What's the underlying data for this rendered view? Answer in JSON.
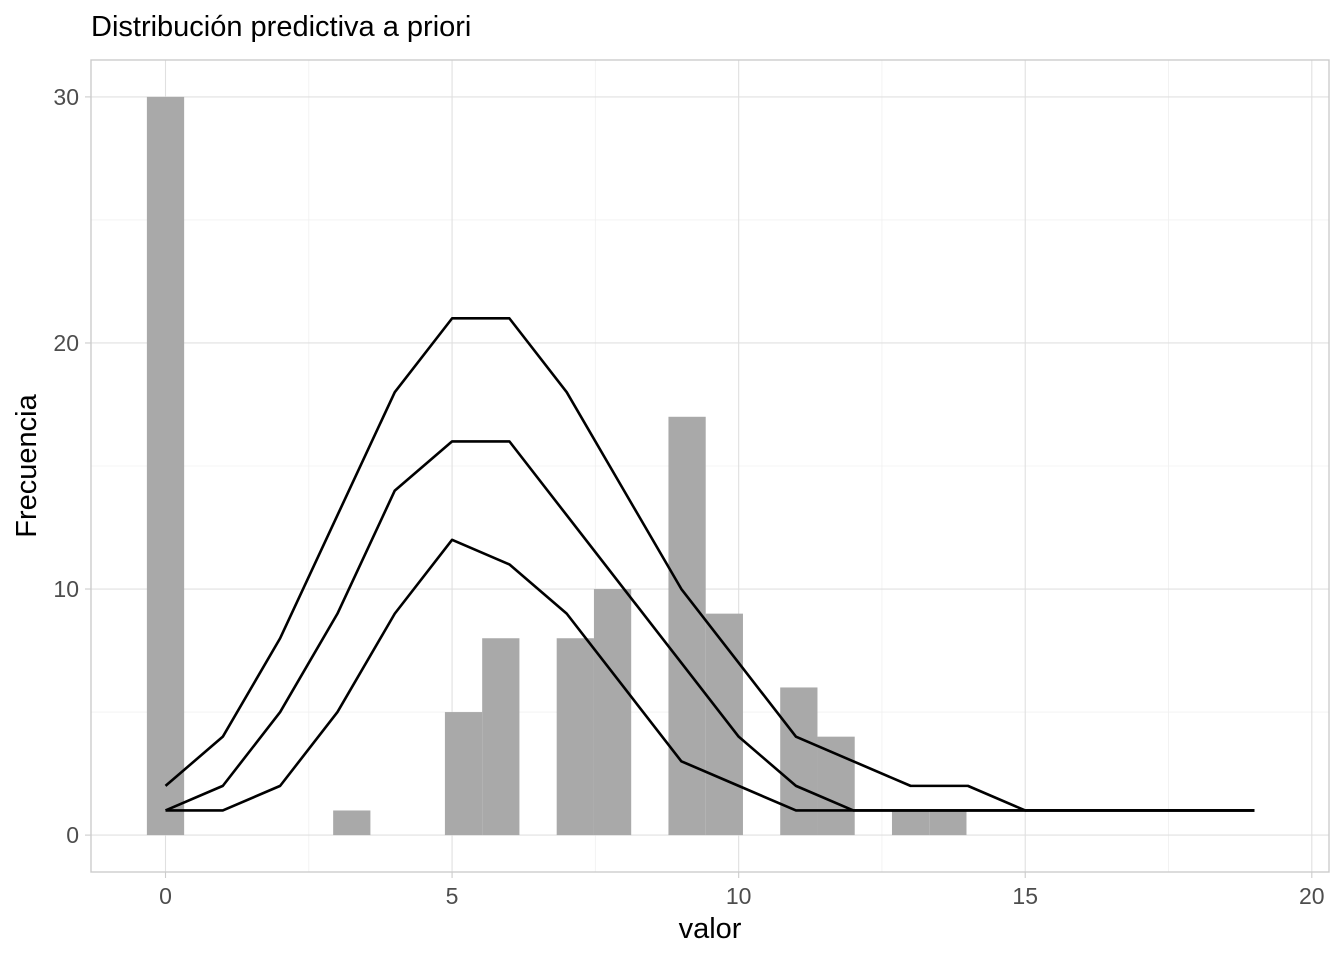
{
  "chart_data": {
    "type": "bar",
    "title": "Distribución predictiva a priori",
    "xlabel": "valor",
    "ylabel": "Frecuencia",
    "xlim": [
      -1.3,
      20.3
    ],
    "ylim": [
      -1.5,
      31.5
    ],
    "x_ticks": [
      0,
      5,
      10,
      15,
      20
    ],
    "y_ticks": [
      0,
      10,
      20,
      30
    ],
    "grid": true,
    "histogram": {
      "bin_width": 0.65,
      "bins": [
        {
          "x": 0,
          "count": 30
        },
        {
          "x": 3.25,
          "count": 1
        },
        {
          "x": 5.2,
          "count": 5
        },
        {
          "x": 5.85,
          "count": 8
        },
        {
          "x": 7.15,
          "count": 8
        },
        {
          "x": 7.8,
          "count": 10
        },
        {
          "x": 9.1,
          "count": 17
        },
        {
          "x": 9.75,
          "count": 9
        },
        {
          "x": 11.05,
          "count": 6
        },
        {
          "x": 11.7,
          "count": 4
        },
        {
          "x": 13.0,
          "count": 1
        },
        {
          "x": 13.65,
          "count": 1
        }
      ]
    },
    "x": [
      0,
      1,
      2,
      3,
      4,
      5,
      6,
      7,
      8,
      9,
      10,
      11,
      12,
      13,
      14,
      15,
      16,
      17,
      18,
      19
    ],
    "series": [
      {
        "values": [
          2,
          4,
          8,
          13,
          18,
          21,
          21,
          18,
          14,
          10,
          7,
          4,
          3,
          2,
          2,
          1,
          1,
          1,
          1,
          1
        ]
      },
      {
        "values": [
          1,
          2,
          5,
          9,
          14,
          16,
          16,
          13,
          10,
          7,
          4,
          2,
          1,
          1,
          1,
          1,
          1,
          1,
          1,
          1
        ]
      },
      {
        "values": [
          1,
          1,
          2,
          5,
          9,
          12,
          11,
          9,
          6,
          3,
          2,
          1,
          1,
          1,
          1,
          1,
          1,
          1,
          1,
          1
        ]
      }
    ]
  }
}
